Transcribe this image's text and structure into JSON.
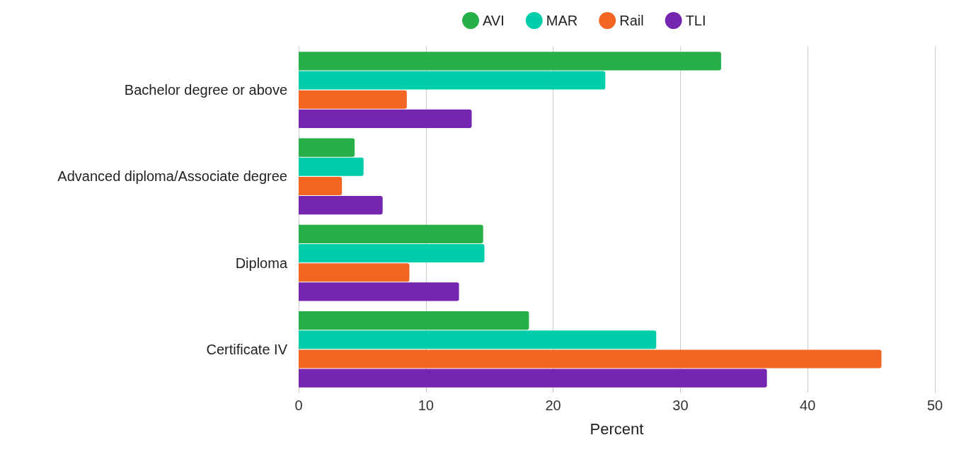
{
  "chart_data": {
    "type": "bar",
    "orientation": "horizontal",
    "xlabel": "Percent",
    "categories": [
      "Bachelor degree or above",
      "Advanced diploma/Associate degree",
      "Diploma",
      "Certificate IV"
    ],
    "series": [
      {
        "name": "AVI",
        "color": "#27b04a",
        "values": [
          33.2,
          4.4,
          14.5,
          18.1
        ]
      },
      {
        "name": "MAR",
        "color": "#00cdaa",
        "values": [
          24.1,
          5.1,
          14.6,
          28.1
        ]
      },
      {
        "name": "Rail",
        "color": "#f26522",
        "values": [
          8.5,
          3.4,
          8.7,
          45.8
        ]
      },
      {
        "name": "TLI",
        "color": "#7526b0",
        "values": [
          13.6,
          6.6,
          12.6,
          36.8
        ]
      }
    ],
    "xlim": [
      0,
      50
    ],
    "xticks": [
      0,
      10,
      20,
      30,
      40,
      50
    ],
    "grid": "x",
    "legend": "top"
  }
}
